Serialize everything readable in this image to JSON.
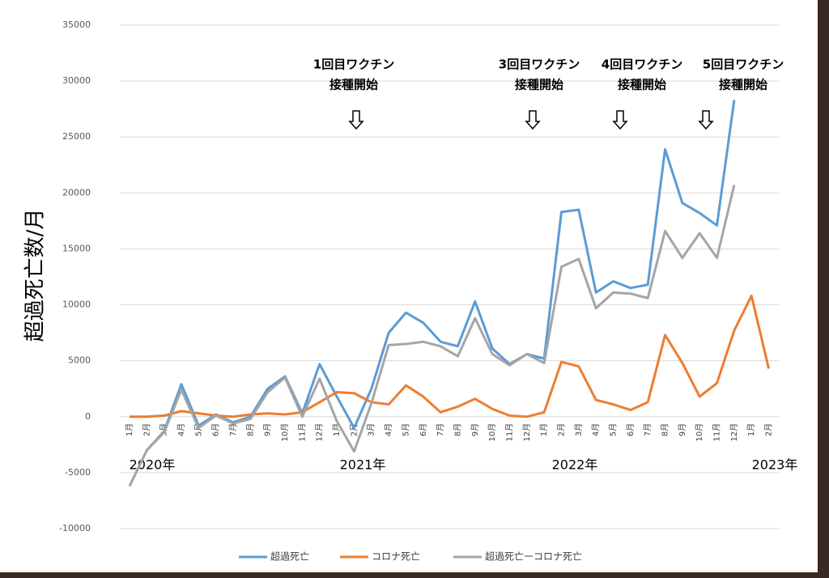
{
  "chart_data": {
    "type": "line",
    "y_label": "超過死亡数/月",
    "categories": [
      "1月",
      "2月",
      "3月",
      "4月",
      "5月",
      "6月",
      "7月",
      "8月",
      "9月",
      "10月",
      "11月",
      "12月",
      "1月",
      "2月",
      "3月",
      "4月",
      "5月",
      "6月",
      "7月",
      "8月",
      "9月",
      "10月",
      "11月",
      "12月",
      "1月",
      "2月",
      "3月",
      "4月",
      "5月",
      "6月",
      "7月",
      "8月",
      "9月",
      "10月",
      "11月",
      "12月",
      "1月",
      "2月"
    ],
    "year_labels": [
      "2020年",
      "2021年",
      "2022年",
      "2023年"
    ],
    "series": [
      {
        "name": "超過死亡",
        "color": "#5b9bd5",
        "values": [
          -6200,
          -3000,
          -1300,
          2900,
          -800,
          200,
          -500,
          0,
          2500,
          3600,
          300,
          4700,
          1800,
          -1000,
          2500,
          7500,
          9300,
          8400,
          6700,
          6300,
          10300,
          6100,
          4700,
          5600,
          5200,
          18300,
          18500,
          11100,
          12100,
          11500,
          11800,
          23900,
          19100,
          18200,
          17100,
          28300,
          null,
          null
        ]
      },
      {
        "name": "コロナ死亡",
        "color": "#ed7d31",
        "values": [
          0,
          0,
          100,
          500,
          300,
          100,
          0,
          200,
          300,
          200,
          400,
          1300,
          2200,
          2100,
          1300,
          1100,
          2800,
          1800,
          400,
          900,
          1600,
          700,
          100,
          0,
          400,
          4900,
          4500,
          1500,
          1100,
          600,
          1300,
          7300,
          4800,
          1800,
          3000,
          7700,
          10800,
          4300
        ]
      },
      {
        "name": "超過死亡ーコロナ死亡",
        "color": "#a5a5a5",
        "values": [
          -6200,
          -3000,
          -1400,
          2400,
          -1000,
          100,
          -600,
          -200,
          2200,
          3500,
          0,
          3400,
          -400,
          -3100,
          1200,
          6400,
          6500,
          6700,
          6300,
          5400,
          8800,
          5600,
          4600,
          5600,
          4800,
          13400,
          14100,
          9700,
          11100,
          11000,
          10600,
          16600,
          14200,
          16400,
          14200,
          20700,
          null,
          null
        ]
      }
    ],
    "annotations": [
      {
        "lines": [
          "1回目ワクチン",
          "接種開始"
        ]
      },
      {
        "lines": [
          "3回目ワクチン",
          "接種開始"
        ]
      },
      {
        "lines": [
          "4回目ワクチン",
          "接種開始"
        ]
      },
      {
        "lines": [
          "5回目ワクチン",
          "接種開始"
        ]
      }
    ],
    "ylim": [
      -10000,
      35000
    ],
    "yticks": [
      -10000,
      -5000,
      0,
      5000,
      10000,
      15000,
      20000,
      25000,
      30000,
      35000
    ],
    "grid": true,
    "legend": "bottom"
  }
}
